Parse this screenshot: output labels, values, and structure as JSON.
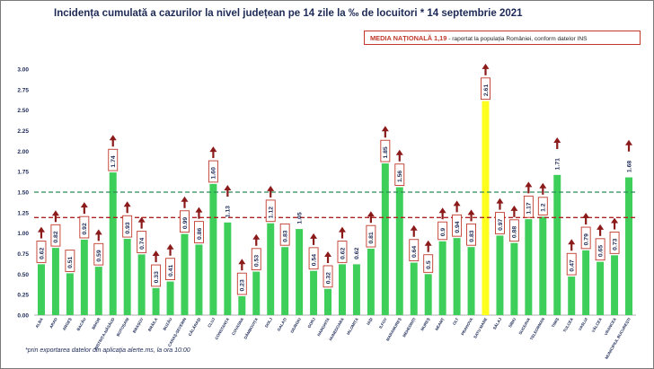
{
  "header": {
    "title": "Incidența cumulată a cazurilor la nivel județean pe 14 zile la ‰ de locuitori * 14 septembrie 2021"
  },
  "national_box": {
    "label": "MEDIA NAȚIONALĂ",
    "value": "1,19",
    "suffix": "- raportat la populația României, conform datelor INS"
  },
  "footnote": "*prin exportarea datelor din aplicația alerte.ms, la ora 10:00",
  "colors": {
    "bar": "#3ecf5a",
    "highlight_bar": "#ffff1f",
    "reference_green": "#2e8b57",
    "reference_red": "#b22222",
    "arrow": "#8b1a1a",
    "label_border": "#c0392b"
  },
  "chart_data": {
    "type": "bar",
    "title": "Incidența cumulată a cazurilor la nivel județean pe 14 zile la ‰ de locuitori * 14 septembrie 2021",
    "xlabel": "",
    "ylabel": "",
    "ylim": [
      0,
      3
    ],
    "yticks": [
      "0.00",
      "0.25",
      "0.50",
      "0.75",
      "1.00",
      "1.25",
      "1.50",
      "1.75",
      "2.00",
      "2.25",
      "2.50",
      "2.75",
      "3.00"
    ],
    "grid": false,
    "reference_lines": [
      {
        "value": 1.5,
        "style": "dashed",
        "color": "green"
      },
      {
        "value": 1.19,
        "style": "dashed",
        "color": "red"
      }
    ],
    "highlight_category": "SATU MARE",
    "categories": [
      "ALBA",
      "ARAD",
      "ARGEȘ",
      "BACĂU",
      "BIHOR",
      "BISTRIȚA-NĂSĂUD",
      "BOTOȘANI",
      "BRAȘOV",
      "BRĂILA",
      "BUZĂU",
      "CARAȘ-SEVERIN",
      "CĂLĂRAȘI",
      "CLUJ",
      "CONSTANȚA",
      "COVASNA",
      "DÂMBOVIȚA",
      "DOLJ",
      "GALAȚI",
      "GIURGIU",
      "GORJ",
      "HARGHITA",
      "HUNEDOARA",
      "IALOMIȚA",
      "IAȘI",
      "ILFOV",
      "MARAMUREȘ",
      "MEHEDINȚI",
      "MUREȘ",
      "NEAMȚ",
      "OLT",
      "PRAHOVA",
      "SATU MARE",
      "SĂLAJ",
      "SIBIU",
      "SUCEAVA",
      "TELEORMAN",
      "TIMIȘ",
      "TULCEA",
      "VASLUI",
      "VÂLCEA",
      "VRANCEA",
      "MUNICIPIUL BUCUREȘTI"
    ],
    "values": [
      0.62,
      0.82,
      0.51,
      0.92,
      0.59,
      1.74,
      0.93,
      0.74,
      0.33,
      0.41,
      0.99,
      0.86,
      1.6,
      1.13,
      0.23,
      0.53,
      1.12,
      0.83,
      1.05,
      0.54,
      0.32,
      0.62,
      0.62,
      0.81,
      1.85,
      1.56,
      0.64,
      0.5,
      0.9,
      0.94,
      0.83,
      2.61,
      0.97,
      0.88,
      1.17,
      1.2,
      1.71,
      0.47,
      0.79,
      0.65,
      0.73,
      1.68
    ],
    "data_labels": [
      "0.62",
      "0.82",
      "0.51",
      "0.92",
      "0.59",
      "1.74",
      "0.93",
      "0.74",
      "0.33",
      "0.41",
      "0.99",
      "0.86",
      "1.60",
      "1.13",
      "0.23",
      "0.53",
      "1.12",
      "0.83",
      "1.05",
      "0.54",
      "0.32",
      "0.62",
      "0.62",
      "0.81",
      "1.85",
      "1.56",
      "0.64",
      "0.5",
      "0.9",
      "0.94",
      "0.83",
      "2.61",
      "0.97",
      "0.88",
      "1.17",
      "1.2",
      "1.71",
      "0.47",
      "0.79",
      "0.65",
      "0.73",
      "1.68"
    ],
    "boxed_labels": [
      true,
      true,
      true,
      true,
      true,
      true,
      true,
      true,
      true,
      true,
      true,
      true,
      true,
      false,
      true,
      true,
      true,
      true,
      false,
      true,
      true,
      true,
      false,
      true,
      true,
      true,
      true,
      true,
      true,
      true,
      true,
      true,
      true,
      true,
      true,
      true,
      false,
      true,
      true,
      true,
      true,
      false
    ],
    "up_arrows": [
      true,
      true,
      false,
      true,
      true,
      true,
      true,
      true,
      true,
      true,
      true,
      true,
      true,
      true,
      true,
      true,
      true,
      false,
      false,
      true,
      true,
      true,
      false,
      true,
      true,
      true,
      true,
      true,
      true,
      true,
      true,
      true,
      true,
      true,
      true,
      true,
      true,
      true,
      true,
      true,
      true,
      true
    ]
  }
}
